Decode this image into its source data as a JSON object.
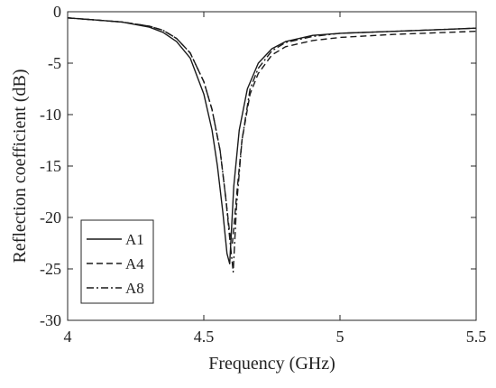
{
  "chart_data": {
    "type": "line",
    "xlabel": "Frequency (GHz)",
    "ylabel": "Reflection coefficient (dB)",
    "xlim": [
      4,
      5.5
    ],
    "ylim": [
      -30,
      0
    ],
    "xticks": [
      4,
      4.5,
      5,
      5.5
    ],
    "xtick_labels": [
      "4",
      "4.5",
      "5",
      "5.5"
    ],
    "yticks": [
      0,
      -5,
      -10,
      -15,
      -20,
      -25,
      -30
    ],
    "ytick_labels": [
      "0",
      "-5",
      "-10",
      "-15",
      "-20",
      "-25",
      "-30"
    ],
    "grid": false,
    "legend_position": "bottom-left",
    "series": [
      {
        "name": "A1",
        "style": "solid",
        "x": [
          4.0,
          4.1,
          4.2,
          4.3,
          4.35,
          4.4,
          4.45,
          4.5,
          4.53,
          4.55,
          4.57,
          4.585,
          4.595,
          4.61,
          4.63,
          4.66,
          4.7,
          4.75,
          4.8,
          4.9,
          5.0,
          5.2,
          5.4,
          5.5
        ],
        "y": [
          -0.6,
          -0.8,
          -1.0,
          -1.5,
          -2.0,
          -2.9,
          -4.5,
          -8.0,
          -11.5,
          -15.0,
          -19.5,
          -23.5,
          -24.5,
          -17.0,
          -11.5,
          -7.5,
          -5.0,
          -3.6,
          -2.9,
          -2.3,
          -2.1,
          -1.9,
          -1.7,
          -1.6
        ]
      },
      {
        "name": "A4",
        "style": "dashed",
        "x": [
          4.0,
          4.1,
          4.2,
          4.3,
          4.35,
          4.4,
          4.45,
          4.5,
          4.53,
          4.56,
          4.58,
          4.595,
          4.605,
          4.62,
          4.64,
          4.67,
          4.7,
          4.75,
          4.8,
          4.9,
          5.0,
          5.2,
          5.4,
          5.5
        ],
        "y": [
          -0.6,
          -0.8,
          -1.0,
          -1.4,
          -1.8,
          -2.6,
          -4.0,
          -6.8,
          -9.5,
          -13.5,
          -18.0,
          -21.5,
          -22.5,
          -18.0,
          -12.5,
          -8.0,
          -6.0,
          -4.2,
          -3.4,
          -2.8,
          -2.5,
          -2.2,
          -2.0,
          -1.9
        ]
      },
      {
        "name": "A8",
        "style": "dashdot",
        "x": [
          4.0,
          4.1,
          4.2,
          4.3,
          4.35,
          4.4,
          4.45,
          4.5,
          4.53,
          4.56,
          4.58,
          4.595,
          4.608,
          4.62,
          4.64,
          4.67,
          4.7,
          4.75,
          4.8,
          4.9,
          5.0,
          5.2,
          5.4,
          5.5
        ],
        "y": [
          -0.6,
          -0.8,
          -1.0,
          -1.4,
          -1.8,
          -2.6,
          -4.0,
          -6.8,
          -9.5,
          -13.5,
          -18.0,
          -22.0,
          -25.3,
          -19.0,
          -12.5,
          -7.5,
          -5.5,
          -3.8,
          -3.0,
          -2.4,
          -2.1,
          -1.9,
          -1.7,
          -1.6
        ]
      }
    ]
  }
}
